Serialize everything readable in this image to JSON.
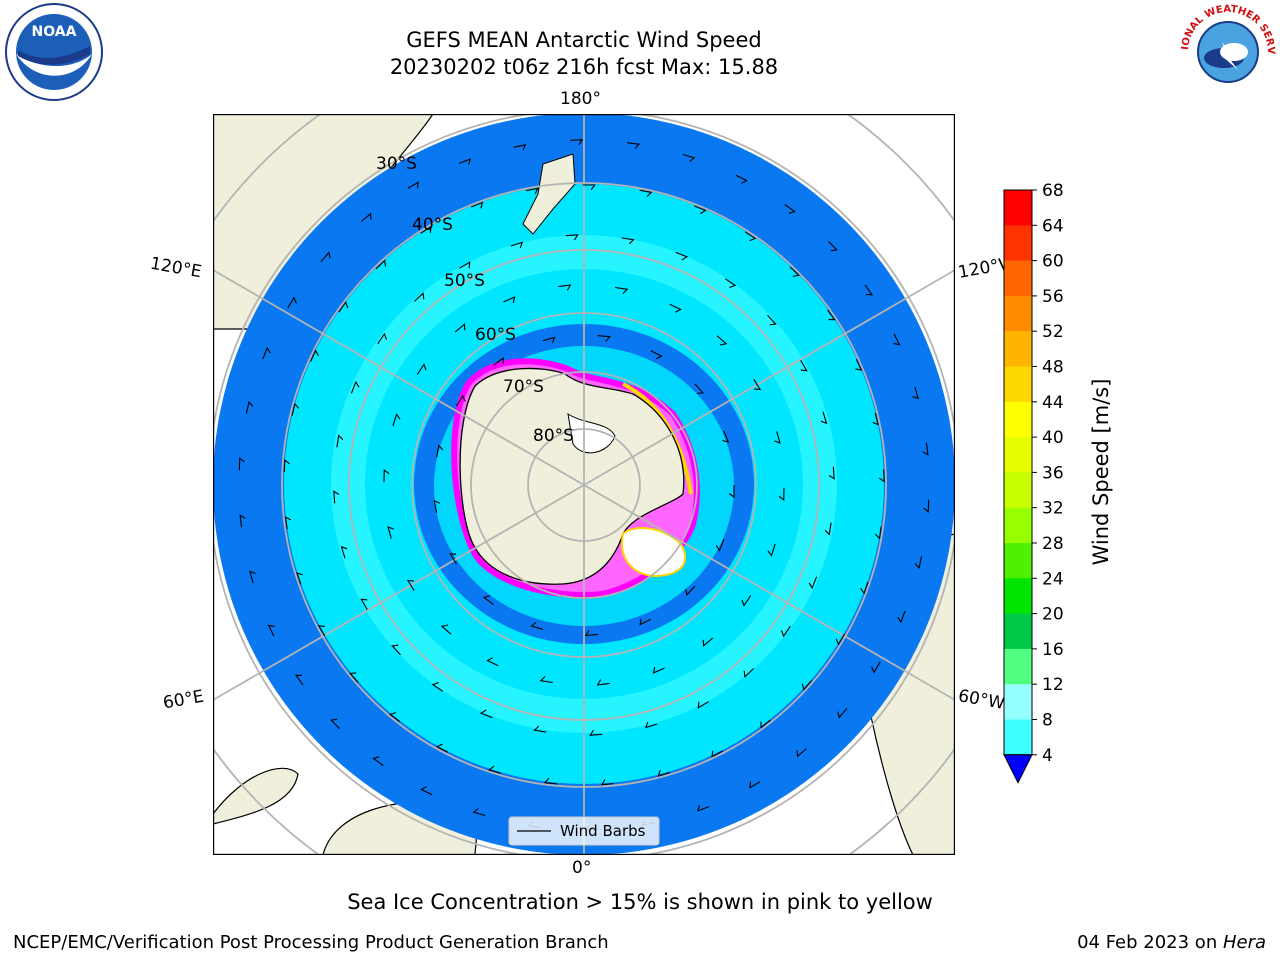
{
  "header": {
    "title_line1": "GEFS MEAN Antarctic Wind Speed",
    "title_line2": "20230202 t06z 216h fcst   Max: 15.88"
  },
  "logos": {
    "left": {
      "text": "NOAA",
      "ring_text": "NATIONAL OCEANIC AND ATMOSPHERIC ADMINISTRATION · U.S. DEPARTMENT OF COMMERCE"
    },
    "right": {
      "text": "NATIONAL WEATHER SERVICE"
    }
  },
  "map": {
    "projection": "south polar stereographic",
    "lon_labels": {
      "top": "180°",
      "bottom": "0°",
      "upper_left": "120°E",
      "upper_right": "120°W",
      "lower_left": "60°E",
      "lower_right": "60°W"
    },
    "lat_labels": [
      "30°S",
      "40°S",
      "50°S",
      "60°S",
      "70°S",
      "80°S"
    ],
    "legend_label": "Wind Barbs",
    "colors": {
      "land": "#efefdc",
      "ocean_4_8": "#0a78f0",
      "ocean_8_12": "#00e6ff",
      "ocean_12_16": "#40ffff",
      "antarctica": "#efefdc",
      "grid": "#b4b4b4"
    }
  },
  "colorbar": {
    "label": "Wind Speed [m/s]",
    "ticks": [
      "68",
      "64",
      "60",
      "56",
      "52",
      "48",
      "44",
      "40",
      "36",
      "32",
      "28",
      "24",
      "20",
      "16",
      "12",
      "8",
      "4"
    ],
    "colors": [
      "#ff0000",
      "#ff3300",
      "#ff6600",
      "#ff8c00",
      "#ffb400",
      "#ffd700",
      "#ffff00",
      "#e6ff00",
      "#c8ff00",
      "#96ff00",
      "#50f000",
      "#00e600",
      "#00c846",
      "#50ff80",
      "#96ffff",
      "#40ffff",
      "#00e6ff",
      "#0a78f0"
    ],
    "extend_color": "#0000ff"
  },
  "footnote": "Sea Ice Concentration > 15% is shown in pink to yellow",
  "footer": {
    "credit": "NCEP/EMC/Verification Post Processing Product Generation Branch",
    "date": "04 Feb 2023 on ",
    "host": "Hera"
  }
}
